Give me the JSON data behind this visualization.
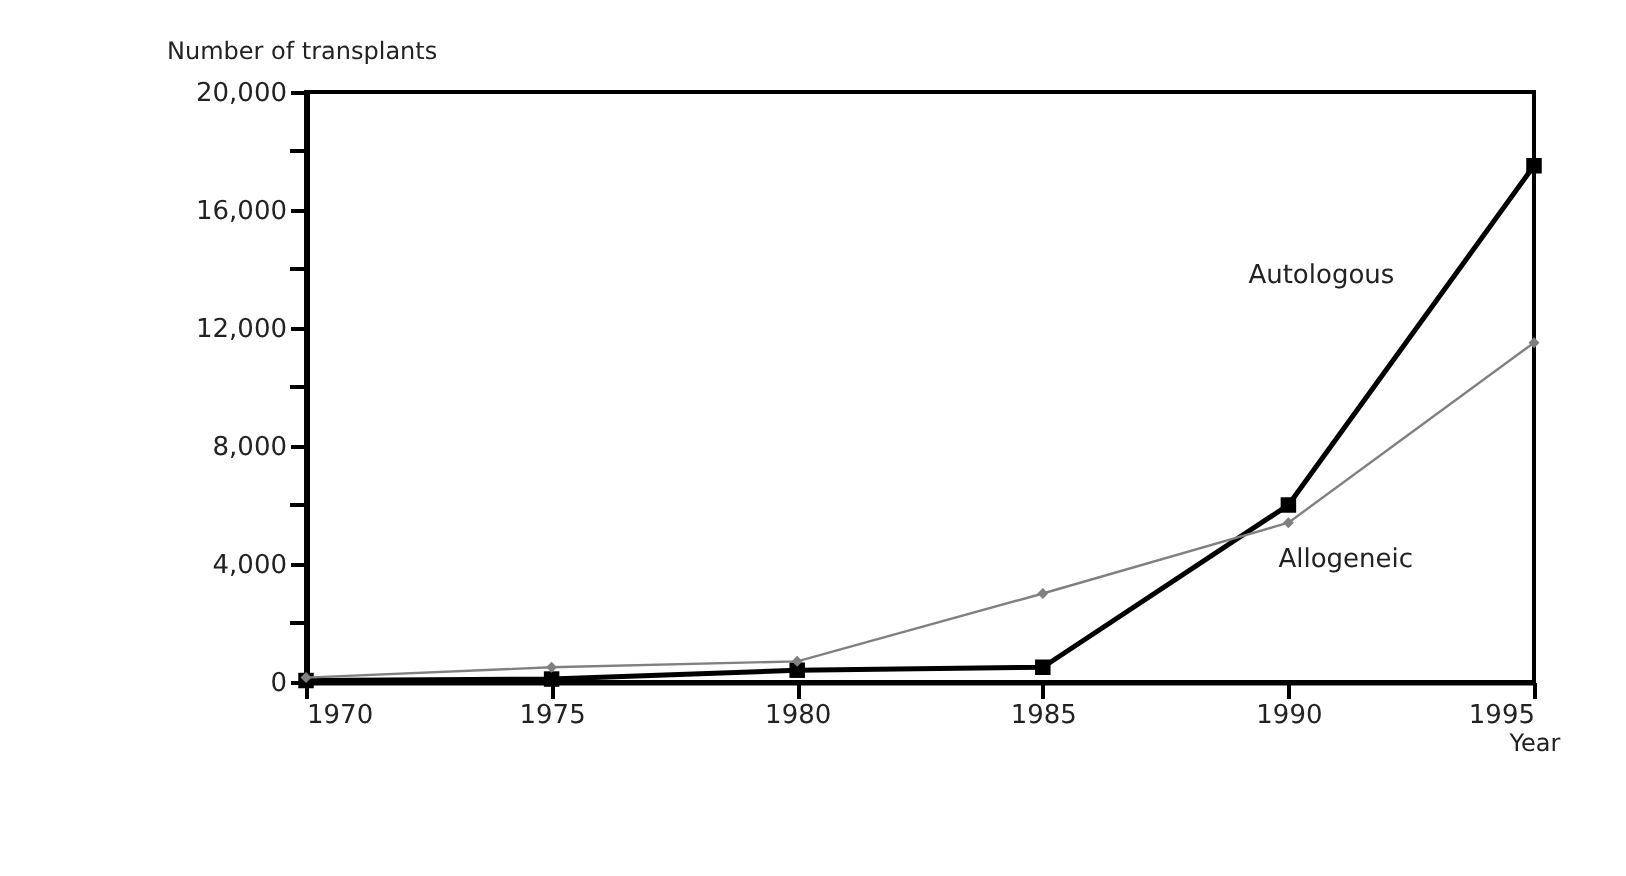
{
  "chart_data": {
    "type": "line",
    "xlabel": "Year",
    "ylabel": "Number of transplants",
    "x": [
      1970,
      1975,
      1980,
      1985,
      1990,
      1995
    ],
    "series": [
      {
        "name": "Autologous",
        "color": "#000000",
        "marker": "square",
        "values": [
          50,
          100,
          400,
          500,
          6000,
          17500
        ]
      },
      {
        "name": "Allogeneic",
        "color": "#808080",
        "marker": "diamond",
        "values": [
          150,
          500,
          700,
          3000,
          5400,
          11500
        ]
      }
    ],
    "xlim": [
      1970,
      1995
    ],
    "xticks": [
      1970,
      1975,
      1980,
      1985,
      1990,
      1995
    ],
    "ylim": [
      0,
      20000
    ],
    "yticks": [
      0,
      {
        "value": 2000,
        "label": null
      },
      {
        "value": 4000,
        "label": "4,000"
      },
      {
        "value": 6000,
        "label": null
      },
      {
        "value": 8000,
        "label": "8,000"
      },
      {
        "value": 10000,
        "label": null
      },
      {
        "value": 12000,
        "label": "12,000"
      },
      {
        "value": 14000,
        "label": null
      },
      {
        "value": 16000,
        "label": "16,000"
      },
      {
        "value": 18000,
        "label": null
      },
      {
        "value": 20000,
        "label": "20,000"
      }
    ],
    "grid": false,
    "legend": false,
    "line_style": "solid"
  }
}
